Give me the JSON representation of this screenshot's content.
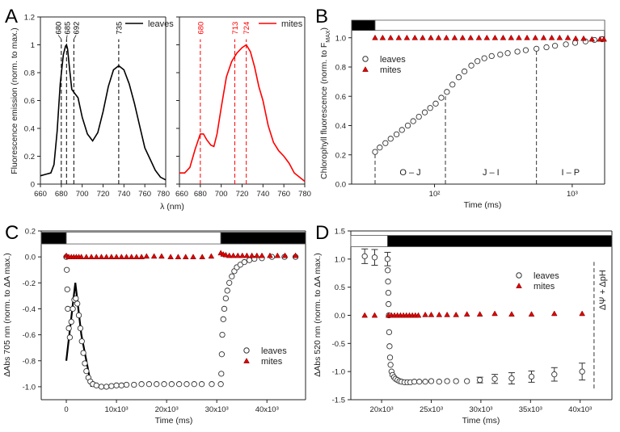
{
  "panel_letters": [
    "A",
    "B",
    "C",
    "D"
  ],
  "chart_data": [
    {
      "panel": "A",
      "type": "line",
      "ylabel": "Fluorescence emission (norm. to max.)",
      "xlabel": "λ (nm)",
      "ylim": [
        0,
        1.2
      ],
      "yticks": [
        "0.0",
        "0.2",
        "0.4",
        "0.6",
        "0.8",
        "1.0",
        "1.2"
      ],
      "subplots": [
        {
          "xlim": [
            660,
            780
          ],
          "xticks": [
            "660",
            "680",
            "700",
            "720",
            "740",
            "760",
            "780"
          ],
          "series": [
            {
              "name": "leaves",
              "color": "#000000",
              "x": [
                660,
                665,
                670,
                673,
                676,
                679,
                682,
                684,
                685,
                686,
                688,
                690,
                693,
                696,
                700,
                705,
                710,
                715,
                720,
                725,
                730,
                735,
                740,
                745,
                750,
                755,
                760,
                765,
                770,
                775,
                780
              ],
              "y": [
                0.06,
                0.07,
                0.08,
                0.14,
                0.38,
                0.72,
                0.93,
                0.99,
                1.0,
                0.97,
                0.82,
                0.68,
                0.65,
                0.62,
                0.48,
                0.36,
                0.31,
                0.37,
                0.52,
                0.7,
                0.82,
                0.85,
                0.82,
                0.72,
                0.58,
                0.42,
                0.26,
                0.18,
                0.1,
                0.05,
                0.03
              ]
            }
          ],
          "markers": [
            {
              "value": 680,
              "label": "680",
              "color": "#000000"
            },
            {
              "value": 685,
              "label": "685",
              "color": "#000000"
            },
            {
              "value": 692,
              "label": "692",
              "color": "#000000"
            },
            {
              "value": 735,
              "label": "735",
              "color": "#000000"
            }
          ]
        },
        {
          "xlim": [
            660,
            780
          ],
          "xticks": [
            "660",
            "680",
            "700",
            "720",
            "740",
            "760",
            "780"
          ],
          "series": [
            {
              "name": "mites",
              "color": "#ff0000",
              "x": [
                660,
                665,
                670,
                675,
                680,
                683,
                686,
                690,
                693,
                696,
                700,
                705,
                710,
                715,
                720,
                724,
                728,
                732,
                736,
                740,
                745,
                750,
                755,
                760,
                765,
                770,
                775,
                780
              ],
              "y": [
                0.08,
                0.08,
                0.12,
                0.25,
                0.36,
                0.36,
                0.32,
                0.28,
                0.27,
                0.36,
                0.55,
                0.77,
                0.88,
                0.94,
                0.98,
                1.0,
                0.95,
                0.84,
                0.7,
                0.6,
                0.42,
                0.3,
                0.24,
                0.2,
                0.15,
                0.08,
                0.05,
                0.02
              ]
            }
          ],
          "markers": [
            {
              "value": 680,
              "label": "680",
              "color": "#ff0000"
            },
            {
              "value": 713,
              "label": "713",
              "color": "#ff0000"
            },
            {
              "value": 724,
              "label": "724",
              "color": "#ff0000"
            }
          ]
        }
      ]
    },
    {
      "panel": "B",
      "type": "scatter",
      "ylabel": "Chlorophyll fluorescence (norm. to F",
      "ylabel_sub": "MAX",
      "ylabel_end": ")",
      "xlabel": "Time (ms)",
      "xscale": "log",
      "xlim": [
        25,
        1720
      ],
      "ylim": [
        0,
        1.12
      ],
      "yticks": [
        {
          "v": 0,
          "t": "0.0"
        },
        {
          "v": 0.2,
          "t": "0.2"
        },
        {
          "v": 0.4,
          "t": "0.4"
        },
        {
          "v": 0.6,
          "t": "0.6"
        },
        {
          "v": 0.8,
          "t": "0.8"
        },
        {
          "v": 1.0,
          "t": "1.0"
        }
      ],
      "xticks": [
        {
          "v": 100,
          "t": "10²"
        },
        {
          "v": 1000,
          "t": "10³"
        }
      ],
      "light_bar": {
        "y": [
          1.05,
          1.12
        ],
        "segments": [
          {
            "state": "dark",
            "from": 25,
            "to": 37
          },
          {
            "state": "light",
            "from": 37,
            "to": 1720
          }
        ]
      },
      "phases": [
        {
          "label": "O – J",
          "from": 37,
          "to": 120
        },
        {
          "label": "J – I",
          "from": 120,
          "to": 550
        },
        {
          "label": "I – P",
          "from": 550,
          "to": 1720
        }
      ],
      "phase_bounds": [
        {
          "x": 37,
          "y": 0.22
        },
        {
          "x": 120,
          "y": 0.6
        },
        {
          "x": 550,
          "y": 0.92
        }
      ],
      "legend": {
        "position": "top-left",
        "items": [
          "leaves",
          "mites"
        ]
      },
      "series": [
        {
          "name": "leaves",
          "marker": "open-circle",
          "x": [
            37,
            40,
            44,
            48,
            53,
            58,
            64,
            70,
            77,
            85,
            93,
            102,
            112,
            123,
            135,
            150,
            165,
            185,
            205,
            230,
            260,
            300,
            340,
            400,
            460,
            550,
            650,
            750,
            900,
            1050,
            1250,
            1450,
            1650
          ],
          "y": [
            0.22,
            0.25,
            0.28,
            0.31,
            0.34,
            0.37,
            0.4,
            0.43,
            0.46,
            0.49,
            0.52,
            0.55,
            0.59,
            0.63,
            0.68,
            0.73,
            0.77,
            0.81,
            0.84,
            0.86,
            0.875,
            0.885,
            0.895,
            0.905,
            0.915,
            0.925,
            0.935,
            0.945,
            0.955,
            0.965,
            0.975,
            0.985,
            0.99
          ]
        },
        {
          "name": "mites",
          "marker": "filled-triangle",
          "color": "#e00000",
          "x": [
            37,
            42,
            48,
            55,
            63,
            72,
            82,
            94,
            107,
            122,
            140,
            160,
            183,
            210,
            240,
            275,
            315,
            360,
            410,
            470,
            540,
            620,
            710,
            810,
            930,
            1060,
            1210,
            1390,
            1590,
            1700
          ],
          "y": [
            1.0,
            1.0,
            1.0,
            1.0,
            1.0,
            1.0,
            1.0,
            1.0,
            1.0,
            1.0,
            1.0,
            1.0,
            1.0,
            1.0,
            1.0,
            1.0,
            1.0,
            1.0,
            1.0,
            1.0,
            1.0,
            1.0,
            1.0,
            1.0,
            1.0,
            0.995,
            0.995,
            0.99,
            0.99,
            0.99
          ]
        }
      ]
    },
    {
      "panel": "C",
      "type": "scatter",
      "ylabel": "ΔAbs 705 nm (norm. to ΔA max.)",
      "xlabel": "Time (ms)",
      "xlim": [
        -5000,
        47700
      ],
      "ylim": [
        -1.1,
        0.2
      ],
      "yticks": [
        {
          "v": -1.0,
          "t": "-1.0"
        },
        {
          "v": -0.8,
          "t": "-0.8"
        },
        {
          "v": -0.6,
          "t": "-0.6"
        },
        {
          "v": -0.4,
          "t": "-0.4"
        },
        {
          "v": -0.2,
          "t": "-0.2"
        },
        {
          "v": 0,
          "t": "0.0"
        },
        {
          "v": 0.2,
          "t": "0.2"
        }
      ],
      "xticks": [
        {
          "v": 0,
          "t": "0"
        },
        {
          "v": 10000,
          "t": "10x10³"
        },
        {
          "v": 20000,
          "t": "20x10³"
        },
        {
          "v": 30000,
          "t": "30x10³"
        },
        {
          "v": 40000,
          "t": "40x10³"
        }
      ],
      "light_bar": {
        "y": [
          0.1,
          0.19
        ],
        "segments": [
          {
            "state": "dark",
            "from": -5000,
            "to": 0
          },
          {
            "state": "light",
            "from": 0,
            "to": 30800
          },
          {
            "state": "dark",
            "from": 30800,
            "to": 47700
          }
        ]
      },
      "legend": {
        "position": "bottom-right",
        "items": [
          "leaves",
          "mites"
        ]
      },
      "series": [
        {
          "name": "leaves",
          "marker": "open-circle",
          "x": [
            0,
            100,
            200,
            300,
            500,
            700,
            1000,
            1300,
            1600,
            1900,
            2200,
            2500,
            2800,
            3100,
            3400,
            3700,
            4000,
            4400,
            4800,
            5300,
            6000,
            7000,
            8000,
            9000,
            10000,
            11000,
            12000,
            13500,
            15000,
            16500,
            18000,
            19500,
            21000,
            22500,
            24000,
            25500,
            27000,
            29000,
            30800,
            30900,
            31000,
            31100,
            31300,
            31500,
            31800,
            32100,
            32500,
            33000,
            33500,
            34000,
            34700,
            35500,
            36500,
            37500,
            39000,
            41000,
            43500,
            45700
          ],
          "y": [
            0,
            -0.1,
            -0.25,
            -0.4,
            -0.55,
            -0.62,
            -0.5,
            -0.4,
            -0.33,
            -0.32,
            -0.36,
            -0.45,
            -0.55,
            -0.65,
            -0.74,
            -0.82,
            -0.88,
            -0.93,
            -0.96,
            -0.98,
            -0.99,
            -1.0,
            -1.0,
            -0.995,
            -0.99,
            -0.99,
            -0.985,
            -0.985,
            -0.98,
            -0.98,
            -0.98,
            -0.98,
            -0.98,
            -0.98,
            -0.98,
            -0.98,
            -0.98,
            -0.98,
            -0.98,
            -0.9,
            -0.75,
            -0.6,
            -0.48,
            -0.4,
            -0.32,
            -0.26,
            -0.2,
            -0.15,
            -0.11,
            -0.08,
            -0.06,
            -0.04,
            -0.025,
            -0.015,
            -0.01,
            0,
            0,
            0
          ]
        },
        {
          "name": "mites",
          "marker": "filled-triangle",
          "color": "#e00000",
          "x": [
            0,
            500,
            1000,
            1500,
            2000,
            2500,
            3000,
            4000,
            5000,
            6000,
            7000,
            8000,
            9000,
            10000,
            11000,
            12000,
            13000,
            14000,
            15000,
            16000,
            17500,
            19000,
            20800,
            22300,
            23800,
            25300,
            27100,
            28900,
            30800,
            31300,
            31800,
            32500,
            33300,
            34200,
            35100,
            36000,
            37000,
            38000,
            39000,
            40600,
            42100,
            43600,
            45700
          ],
          "y": [
            0.01,
            0,
            0,
            0,
            0,
            0,
            0,
            0,
            0,
            0,
            0,
            0,
            0,
            0,
            0,
            0,
            0,
            0,
            0,
            0.005,
            0.005,
            0.005,
            0,
            0,
            0,
            0,
            0,
            0.005,
            0.03,
            0.02,
            0.015,
            0.01,
            0.01,
            0.01,
            0.01,
            0.01,
            0.01,
            0.01,
            0.01,
            0.01,
            0.01,
            0.01,
            0.01
          ]
        }
      ]
    },
    {
      "panel": "D",
      "type": "scatter",
      "ylabel": "ΔAbs 520 nm (norm. to ΔA max.)",
      "xlabel": "Time (ms)",
      "xlim": [
        16900,
        43200
      ],
      "ylim": [
        -1.5,
        1.5
      ],
      "yticks": [
        {
          "v": -1.5,
          "t": "-1.5"
        },
        {
          "v": -1.0,
          "t": "-1.0"
        },
        {
          "v": -0.5,
          "t": "-0.5"
        },
        {
          "v": 0,
          "t": "0.0"
        },
        {
          "v": 0.5,
          "t": "0.5"
        },
        {
          "v": 1.0,
          "t": "1.0"
        },
        {
          "v": 1.5,
          "t": "1.5"
        }
      ],
      "xticks": [
        {
          "v": 20000,
          "t": "20x10³"
        },
        {
          "v": 25000,
          "t": "25x10³"
        },
        {
          "v": 30000,
          "t": "30x10³"
        },
        {
          "v": 35000,
          "t": "35x10³"
        },
        {
          "v": 40000,
          "t": "40x10³"
        }
      ],
      "light_bar": {
        "y": [
          1.22,
          1.42
        ],
        "segments": [
          {
            "state": "light",
            "from": 16900,
            "to": 20600
          },
          {
            "state": "dark",
            "from": 20600,
            "to": 43200
          }
        ]
      },
      "annotation": {
        "label": "ΔΨ + ΔpH",
        "x": 41400,
        "y": [
          -1.3,
          0.95
        ]
      },
      "legend": {
        "position": "top-right",
        "items": [
          "leaves",
          "mites"
        ]
      },
      "series": [
        {
          "name": "leaves",
          "marker": "open-circle",
          "x": [
            18300,
            19300,
            20600,
            20620,
            20650,
            20680,
            20700,
            20730,
            20760,
            20800,
            20850,
            20900,
            21000,
            21100,
            21250,
            21400,
            21600,
            21800,
            22000,
            22300,
            22600,
            22900,
            23300,
            23800,
            24400,
            25000,
            25800,
            26600,
            27500,
            28600,
            29900,
            31400,
            33100,
            35100,
            37400,
            40200
          ],
          "y": [
            1.05,
            1.03,
            1.0,
            0.8,
            0.6,
            0.4,
            0.2,
            0.0,
            -0.3,
            -0.55,
            -0.75,
            -0.88,
            -1.0,
            -1.06,
            -1.1,
            -1.13,
            -1.15,
            -1.17,
            -1.18,
            -1.19,
            -1.19,
            -1.19,
            -1.18,
            -1.18,
            -1.18,
            -1.17,
            -1.18,
            -1.17,
            -1.17,
            -1.17,
            -1.15,
            -1.13,
            -1.12,
            -1.09,
            -1.05,
            -1.0
          ],
          "error": [
            0.13,
            0.14,
            0.12,
            0,
            0,
            0,
            0,
            0,
            0,
            0,
            0,
            0,
            0,
            0,
            0,
            0,
            0,
            0,
            0,
            0,
            0,
            0,
            0,
            0,
            0,
            0,
            0,
            0,
            0,
            0,
            0.05,
            0.08,
            0.1,
            0.1,
            0.12,
            0.15
          ]
        },
        {
          "name": "mites",
          "marker": "filled-triangle",
          "color": "#e00000",
          "x": [
            18300,
            19300,
            20700,
            21000,
            21300,
            21600,
            21900,
            22200,
            22500,
            22800,
            23100,
            23400,
            23700,
            24400,
            25000,
            25800,
            26600,
            27500,
            28600,
            29900,
            31400,
            33100,
            35100,
            37400,
            40200
          ],
          "y": [
            0,
            0,
            0,
            0,
            0,
            0,
            0,
            0,
            0,
            0,
            0,
            0,
            0,
            0.01,
            0.01,
            0.01,
            0.01,
            0.01,
            0.02,
            0.02,
            0.03,
            0.02,
            0.02,
            0.03,
            0.03
          ]
        }
      ]
    }
  ]
}
